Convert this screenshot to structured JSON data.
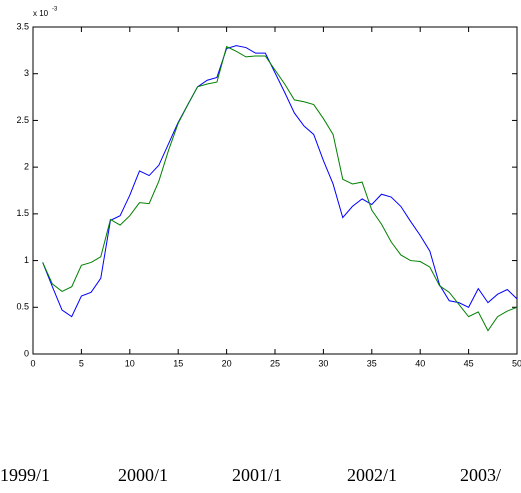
{
  "chart_data": {
    "type": "line",
    "axis_multiplier": {
      "base": "x 10",
      "exponent": "-3"
    },
    "x": [
      1,
      2,
      3,
      4,
      5,
      6,
      7,
      8,
      9,
      10,
      11,
      12,
      13,
      14,
      15,
      16,
      17,
      18,
      19,
      20,
      21,
      22,
      23,
      24,
      25,
      26,
      27,
      28,
      29,
      30,
      31,
      32,
      33,
      34,
      35,
      36,
      37,
      38,
      39,
      40,
      41,
      42,
      43,
      44,
      45,
      46,
      47,
      48,
      49,
      50
    ],
    "series": [
      {
        "color": "#0000ff",
        "values": [
          0.98,
          0.72,
          0.47,
          0.4,
          0.62,
          0.66,
          0.81,
          1.43,
          1.48,
          1.7,
          1.96,
          1.91,
          2.02,
          2.25,
          2.48,
          2.67,
          2.86,
          2.93,
          2.96,
          3.27,
          3.3,
          3.28,
          3.22,
          3.22,
          3.01,
          2.8,
          2.58,
          2.44,
          2.35,
          2.07,
          1.82,
          1.46,
          1.58,
          1.66,
          1.6,
          1.71,
          1.68,
          1.58,
          1.42,
          1.27,
          1.1,
          0.74,
          0.57,
          0.55,
          0.5,
          0.7,
          0.55,
          0.64,
          0.69,
          0.59
        ]
      },
      {
        "color": "#008000",
        "values": [
          0.98,
          0.75,
          0.67,
          0.72,
          0.95,
          0.98,
          1.04,
          1.44,
          1.38,
          1.48,
          1.62,
          1.61,
          1.85,
          2.18,
          2.47,
          2.67,
          2.86,
          2.89,
          2.91,
          3.29,
          3.24,
          3.18,
          3.19,
          3.19,
          3.04,
          2.89,
          2.72,
          2.7,
          2.67,
          2.52,
          2.35,
          1.87,
          1.82,
          1.84,
          1.54,
          1.39,
          1.2,
          1.06,
          1.0,
          0.99,
          0.93,
          0.73,
          0.66,
          0.53,
          0.4,
          0.45,
          0.25,
          0.4,
          0.46,
          0.5
        ]
      }
    ],
    "xlim": [
      0,
      50
    ],
    "xticks": [
      0,
      5,
      10,
      15,
      20,
      25,
      30,
      35,
      40,
      45,
      50
    ],
    "ylim": [
      0,
      3.5
    ],
    "yticks": [
      0,
      0.5,
      1,
      1.5,
      2,
      2.5,
      3,
      3.5
    ],
    "footer_labels": [
      "1999/1",
      "2000/1",
      "2001/1",
      "2002/1",
      "2003/"
    ]
  }
}
